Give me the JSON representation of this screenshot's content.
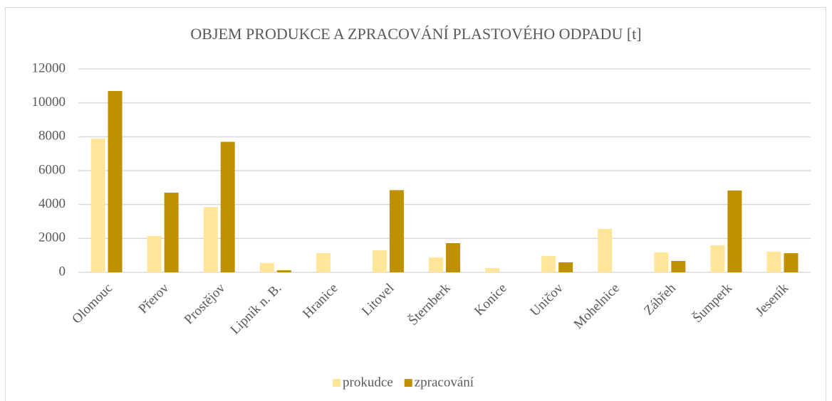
{
  "chart_data": {
    "type": "bar",
    "title": "OBJEM PRODUKCE A ZPRACOVÁNÍ PLASTOVÉHO ODPADU [t]",
    "categories": [
      "Olomouc",
      "Přerov",
      "Prostějov",
      "Lipník n. B.",
      "Hranice",
      "Litovel",
      "Šternberk",
      "Konice",
      "Uničov",
      "Mohelnice",
      "Zábřeh",
      "Šumperk",
      "Jeseník"
    ],
    "series": [
      {
        "name": "prokudce",
        "color": "#ffe699",
        "values": [
          7900,
          2150,
          3850,
          550,
          1130,
          1300,
          880,
          250,
          960,
          2560,
          1170,
          1590,
          1220
        ]
      },
      {
        "name": "zpracování",
        "color": "#bf9000",
        "values": [
          10700,
          4700,
          7700,
          120,
          0,
          4850,
          1720,
          0,
          590,
          0,
          670,
          4830,
          1130
        ]
      }
    ],
    "ylim": [
      0,
      12000
    ],
    "yticks": [
      0,
      2000,
      4000,
      6000,
      8000,
      10000,
      12000
    ],
    "grid": true,
    "legend": "bottom"
  }
}
